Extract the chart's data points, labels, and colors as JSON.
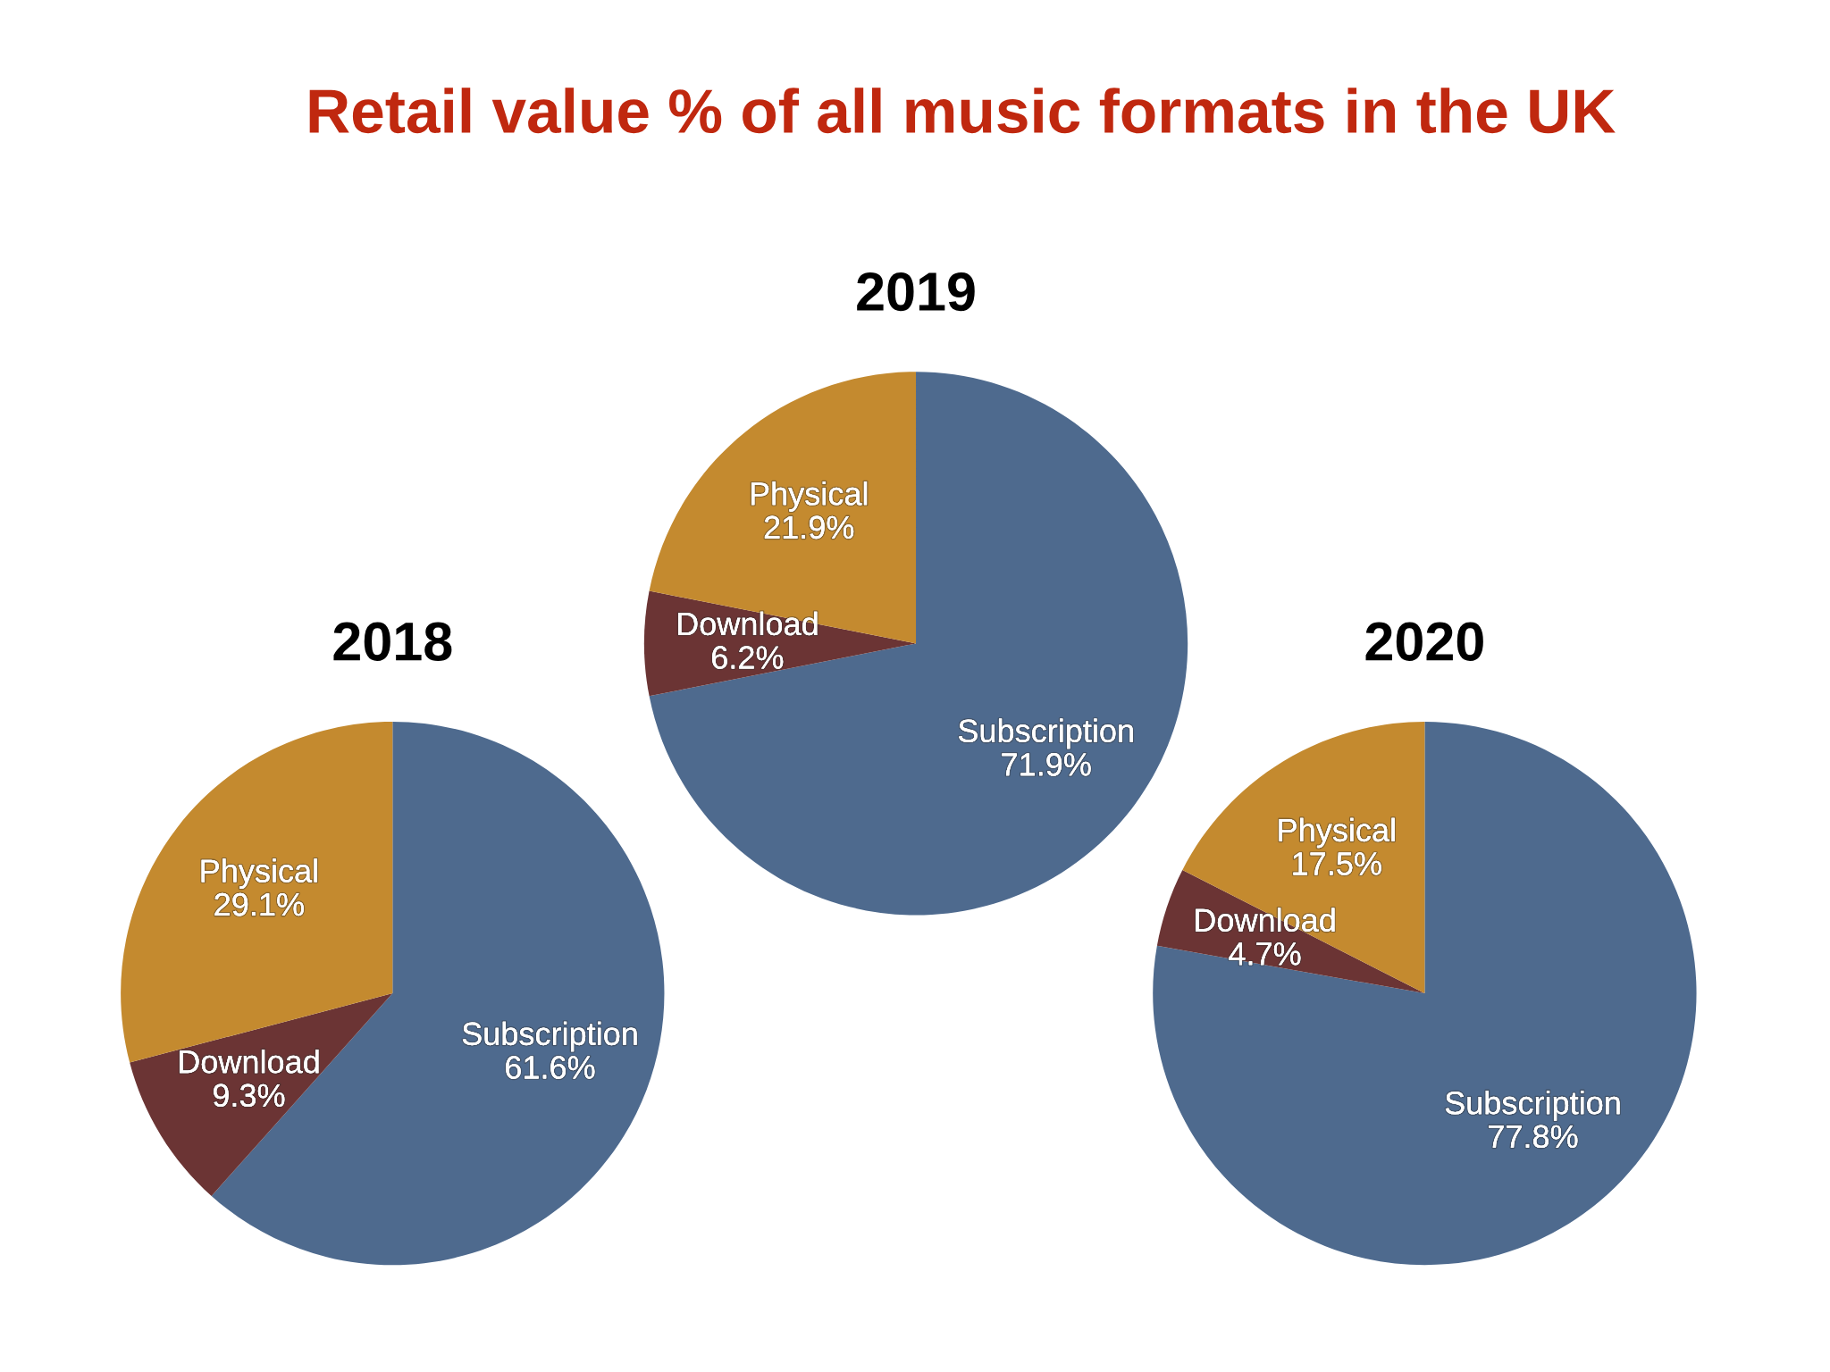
{
  "chart_data": [
    {
      "type": "pie",
      "title": "2018",
      "annotations": [
        "Retail value % of all music formats in the UK"
      ],
      "categories": [
        "Subscription",
        "Download",
        "Physical"
      ],
      "values": [
        61.6,
        9.3,
        29.1
      ],
      "value_labels": [
        "61.6%",
        "9.3%",
        "29.1%"
      ],
      "colors": [
        "#4e6a8e",
        "#6b3434",
        "#c48a2f"
      ]
    },
    {
      "type": "pie",
      "title": "2019",
      "categories": [
        "Subscription",
        "Download",
        "Physical"
      ],
      "values": [
        71.9,
        6.2,
        21.9
      ],
      "value_labels": [
        "71.9%",
        "6.2%",
        "21.9%"
      ],
      "colors": [
        "#4e6a8e",
        "#6b3434",
        "#c48a2f"
      ]
    },
    {
      "type": "pie",
      "title": "2020",
      "categories": [
        "Subscription",
        "Download",
        "Physical"
      ],
      "values": [
        77.8,
        4.7,
        17.5
      ],
      "value_labels": [
        "77.8%",
        "4.7%",
        "17.5%"
      ],
      "colors": [
        "#4e6a8e",
        "#6b3434",
        "#c48a2f"
      ]
    }
  ]
}
